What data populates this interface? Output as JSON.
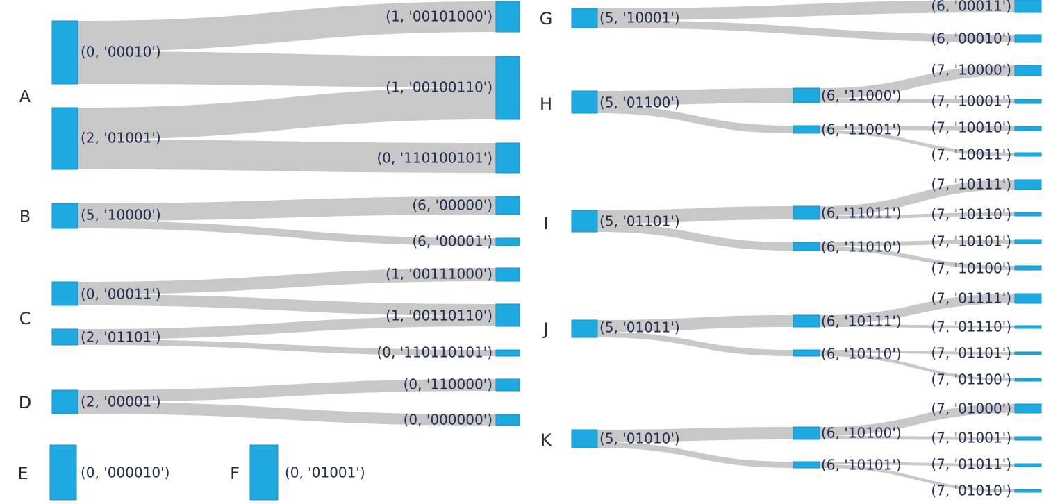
{
  "panels": [
    {
      "id": "A",
      "nodes": [
        "(0, '00010')",
        "(2, '01001')",
        "(1, '00101000')",
        "(1, '00100110')",
        "(0, '110100101')"
      ],
      "links": [
        [
          0,
          2
        ],
        [
          0,
          3
        ],
        [
          1,
          3
        ],
        [
          1,
          4
        ]
      ]
    },
    {
      "id": "B",
      "nodes": [
        "(5, '10000')",
        "(6, '00000')",
        "(6, '00001')"
      ],
      "links": [
        [
          0,
          1
        ],
        [
          0,
          2
        ]
      ]
    },
    {
      "id": "C",
      "nodes": [
        "(0, '00011')",
        "(2, '01101')",
        "(1, '00111000')",
        "(1, '00110110')",
        "(0, '110110101')"
      ],
      "links": [
        [
          0,
          2
        ],
        [
          0,
          3
        ],
        [
          1,
          3
        ],
        [
          1,
          4
        ]
      ]
    },
    {
      "id": "D",
      "nodes": [
        "(2, '00001')",
        "(0, '110000')",
        "(0, '000000')"
      ],
      "links": [
        [
          0,
          1
        ],
        [
          0,
          2
        ]
      ]
    },
    {
      "id": "E",
      "nodes": [
        "(0, '000010')"
      ],
      "links": []
    },
    {
      "id": "F",
      "nodes": [
        "(0, '01001')"
      ],
      "links": []
    },
    {
      "id": "G",
      "nodes": [
        "(5, '10001')",
        "(6, '00011')",
        "(6, '00010')"
      ],
      "links": [
        [
          0,
          1
        ],
        [
          0,
          2
        ]
      ]
    },
    {
      "id": "H",
      "nodes": [
        "(5, '01100')",
        "(6, '11000')",
        "(6, '11001')",
        "(7, '10000')",
        "(7, '10001')",
        "(7, '10010')",
        "(7, '10011')"
      ],
      "links": [
        [
          0,
          1
        ],
        [
          0,
          2
        ],
        [
          1,
          3
        ],
        [
          1,
          4
        ],
        [
          2,
          5
        ],
        [
          2,
          6
        ]
      ]
    },
    {
      "id": "I",
      "nodes": [
        "(5, '01101')",
        "(6, '11011')",
        "(6, '11010')",
        "(7, '10111')",
        "(7, '10110')",
        "(7, '10101')",
        "(7, '10100')"
      ],
      "links": [
        [
          0,
          1
        ],
        [
          0,
          2
        ],
        [
          1,
          3
        ],
        [
          1,
          4
        ],
        [
          2,
          5
        ],
        [
          2,
          6
        ]
      ]
    },
    {
      "id": "J",
      "nodes": [
        "(5, '01011')",
        "(6, '10111')",
        "(6, '10110')",
        "(7, '01111')",
        "(7, '01110')",
        "(7, '01101')",
        "(7, '01100')"
      ],
      "links": [
        [
          0,
          1
        ],
        [
          0,
          2
        ],
        [
          1,
          3
        ],
        [
          1,
          4
        ],
        [
          2,
          5
        ],
        [
          2,
          6
        ]
      ]
    },
    {
      "id": "K",
      "nodes": [
        "(5, '01010')",
        "(6, '10100')",
        "(6, '10101')",
        "(7, '01000')",
        "(7, '01001')",
        "(7, '01011')",
        "(7, '01010')"
      ],
      "links": [
        [
          0,
          1
        ],
        [
          0,
          2
        ],
        [
          1,
          3
        ],
        [
          1,
          4
        ],
        [
          2,
          5
        ],
        [
          2,
          6
        ]
      ]
    }
  ],
  "colors": {
    "node": "#1ea9e1",
    "link": "#c8c8c8",
    "label": "#1f2d4e"
  }
}
